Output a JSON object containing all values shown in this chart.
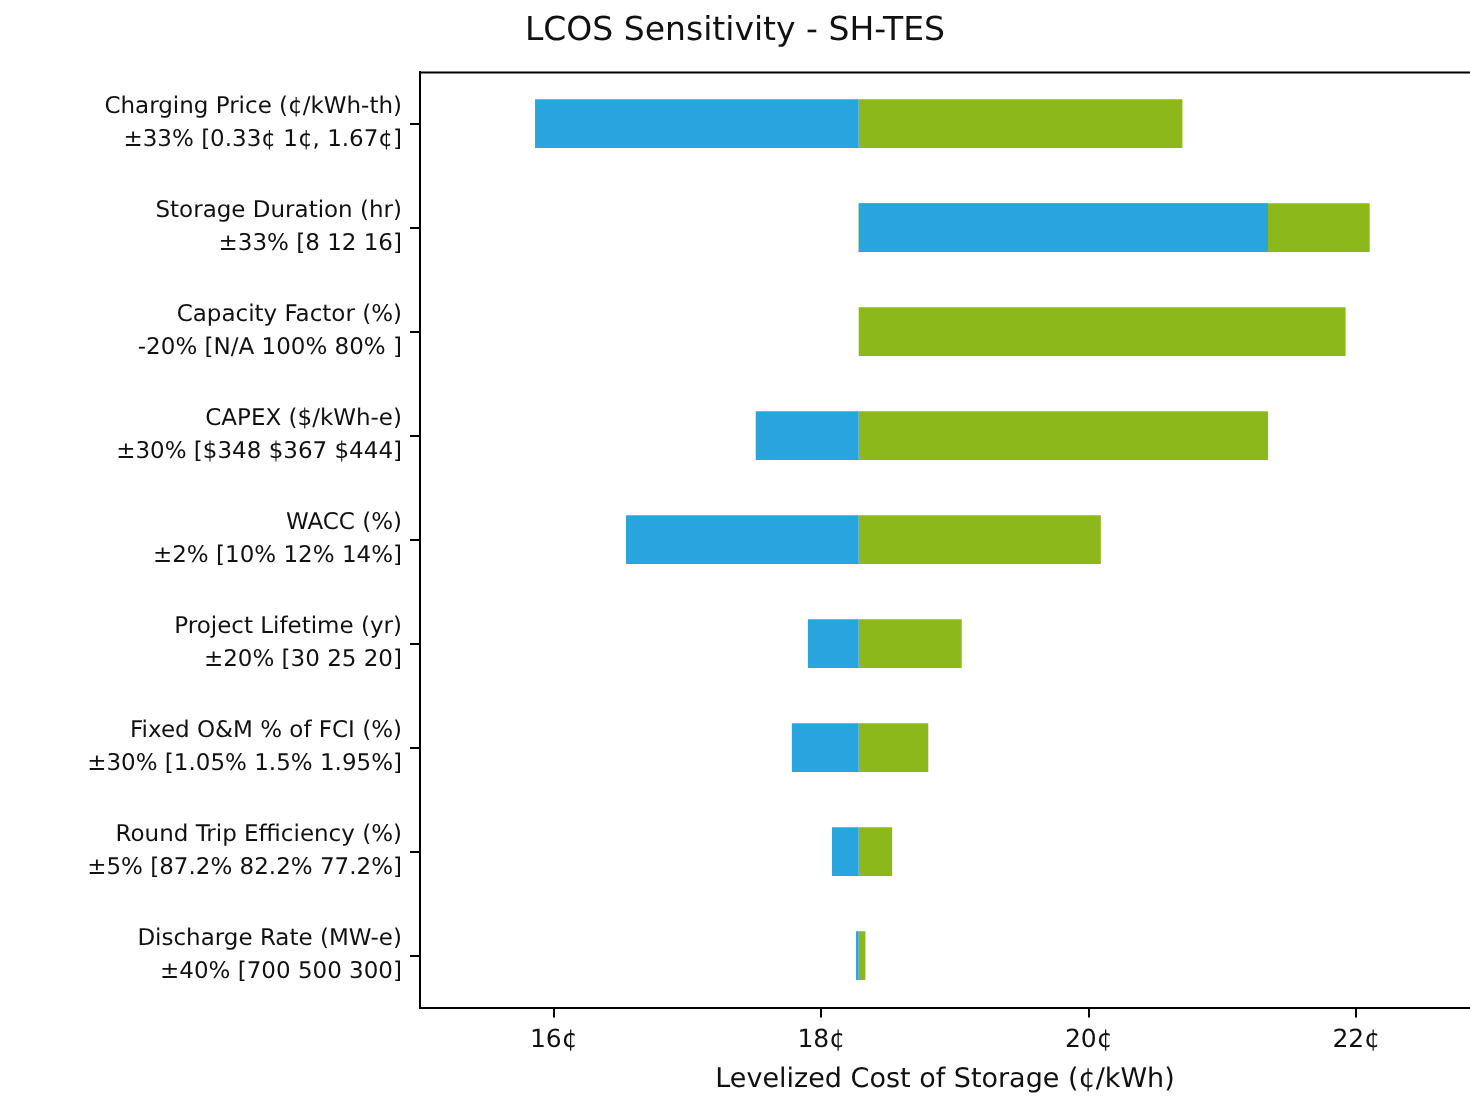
{
  "chart_data": {
    "type": "bar",
    "orientation": "horizontal",
    "title": "LCOS Sensitivity - SH-TES",
    "xlabel": "Levelized Cost of Storage (¢/kWh)",
    "categories": [
      "Charging Price (¢/kWh-th)\n±33% [0.33¢ 1¢, 1.67¢]",
      "Storage Duration (hr)\n±33% [8 12 16]",
      "Capacity Factor (%)\n-20% [N/A 100% 80% ]",
      "CAPEX ($/kWh-e)\n±30% [$348 $367 $444]",
      "WACC (%)\n±2% [10% 12% 14%]",
      "Project Lifetime (yr)\n±20% [30 25 20]",
      "Fixed O&M % of FCI (%)\n±30% [1.05% 1.5% 1.95%]",
      "Round Trip Efficiency (%)\n±5% [87.2% 82.2% 77.2%]",
      "Discharge Rate (MW-e)\n±40% [700 500 300]"
    ],
    "series": [
      {
        "color": "#2aa4dc",
        "base": [
          18.28,
          18.28,
          null,
          18.28,
          18.28,
          18.28,
          18.28,
          18.28,
          18.28
        ],
        "values": [
          -2.42,
          3.06,
          null,
          -0.77,
          -1.74,
          -0.38,
          -0.5,
          -0.2,
          -0.02
        ]
      },
      {
        "color": "#8cb81c",
        "base": [
          18.28,
          18.28,
          18.28,
          18.28,
          18.28,
          18.28,
          18.28,
          18.28,
          18.28
        ],
        "values": [
          2.42,
          3.82,
          3.64,
          3.06,
          1.81,
          0.77,
          0.52,
          0.25,
          0.05
        ]
      }
    ],
    "xlim": [
      15,
      22.85
    ],
    "xticks": [
      {
        "value": 16,
        "label": "16¢"
      },
      {
        "value": 18,
        "label": "18¢"
      },
      {
        "value": 20,
        "label": "20¢"
      },
      {
        "value": 22,
        "label": "22¢"
      }
    ],
    "grid": false,
    "legend": false
  }
}
